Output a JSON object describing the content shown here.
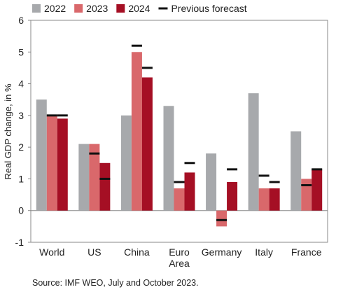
{
  "chart_data": {
    "type": "bar",
    "categories": [
      [
        "World"
      ],
      [
        "US"
      ],
      [
        "China"
      ],
      [
        "Euro",
        "Area"
      ],
      [
        "Germany"
      ],
      [
        "Italy"
      ],
      [
        "France"
      ]
    ],
    "series": [
      {
        "name": "2022",
        "color": "#a7a9ac",
        "values": [
          3.5,
          2.1,
          3.0,
          3.3,
          1.8,
          3.7,
          2.5
        ]
      },
      {
        "name": "2023",
        "color": "#d9686b",
        "values": [
          3.0,
          2.1,
          5.0,
          0.7,
          -0.5,
          0.7,
          1.0
        ]
      },
      {
        "name": "2024",
        "color": "#a50f24",
        "values": [
          2.9,
          1.5,
          4.2,
          1.2,
          0.9,
          0.7,
          1.3
        ]
      }
    ],
    "previous_forecast": {
      "name": "Previous forecast",
      "color": "#111111",
      "2023": [
        3.0,
        1.8,
        5.2,
        0.9,
        -0.3,
        1.1,
        0.8
      ],
      "2024": [
        3.0,
        1.0,
        4.5,
        1.5,
        1.3,
        0.9,
        1.3
      ]
    },
    "ylabel": "Real GDP change, in %",
    "ylim": [
      -1,
      6
    ],
    "yticks": [
      -1,
      0,
      1,
      2,
      3,
      4,
      5,
      6
    ],
    "legend_position": "top",
    "grid": false
  },
  "source": "Source: IMF WEO, July and October 2023."
}
